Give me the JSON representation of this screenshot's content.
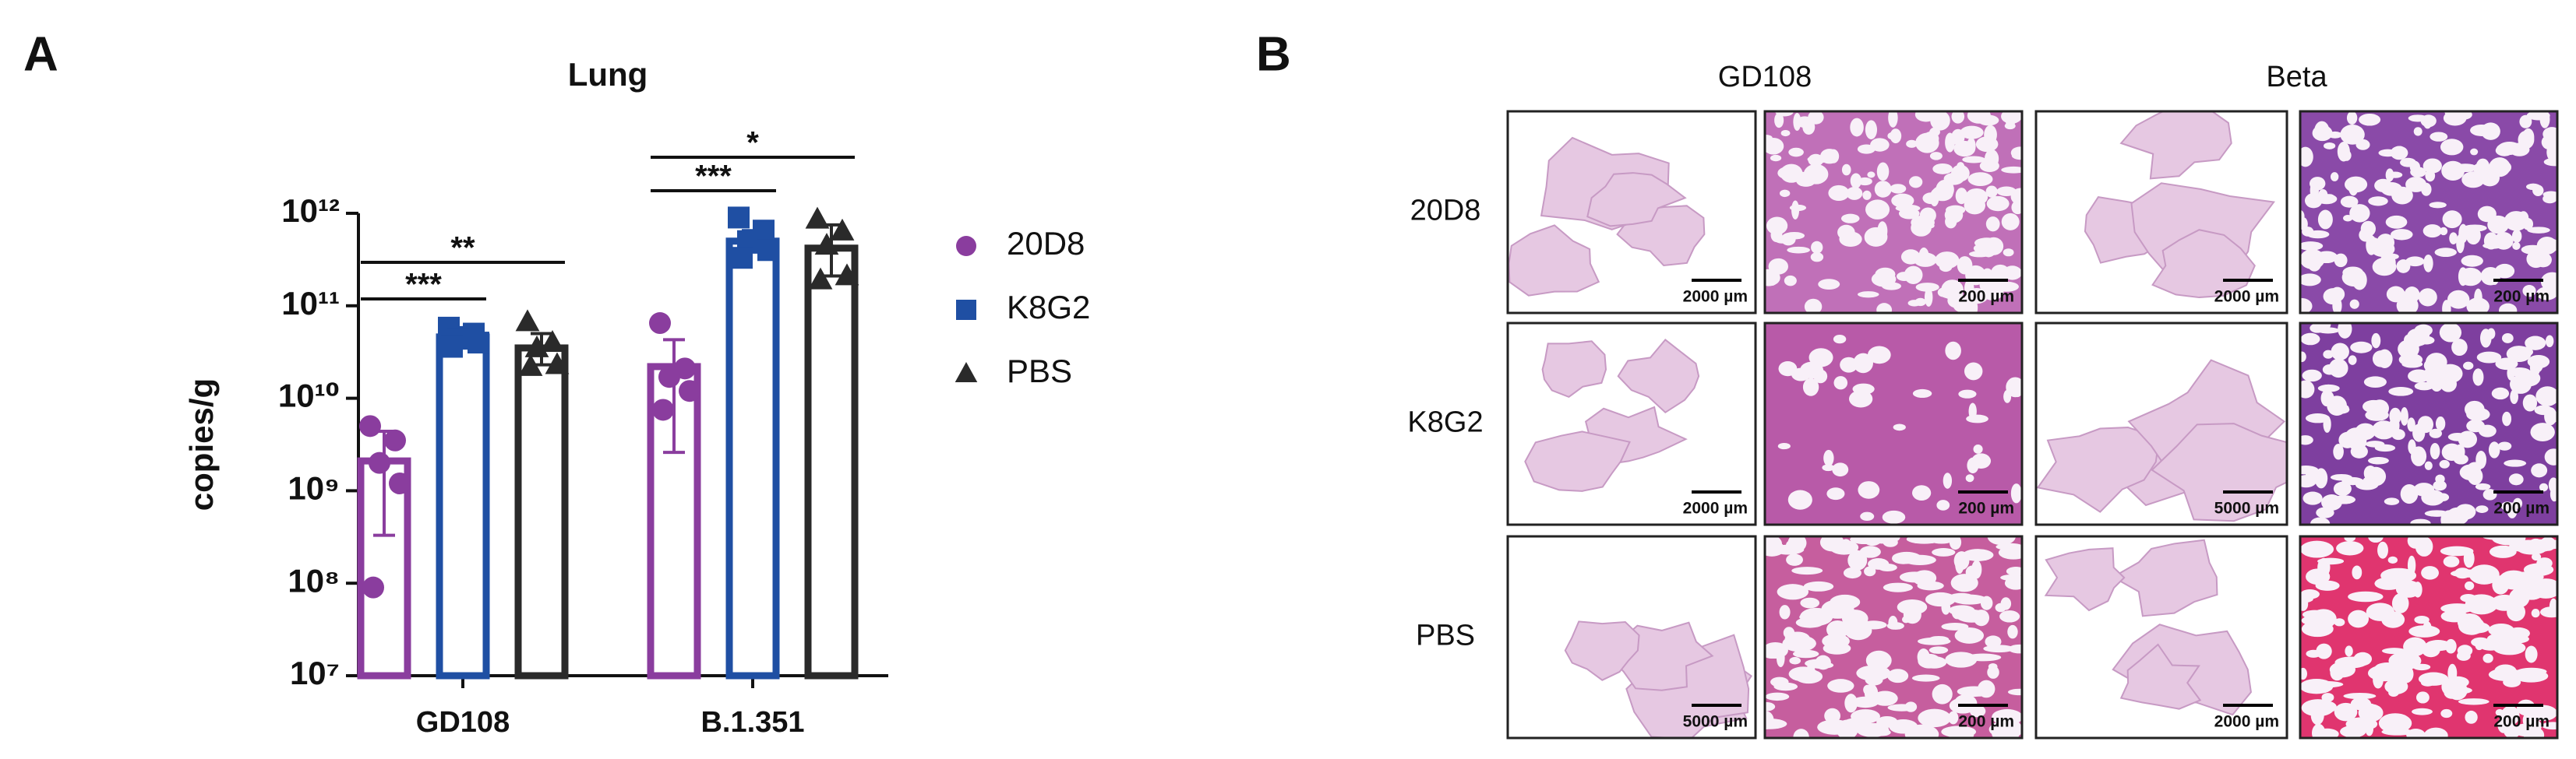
{
  "panels": [
    "A",
    "B"
  ],
  "chart_data": {
    "type": "bar",
    "title": "Lung",
    "y_label": "copies/g",
    "log_scale": true,
    "categories": [
      "GD108",
      "B.1.351"
    ],
    "ylim": [
      10000000,
      1000000000000
    ],
    "yticks": [
      {
        "value": 10000000,
        "label": "10⁷"
      },
      {
        "value": 100000000,
        "label": "10⁸"
      },
      {
        "value": 1000000000,
        "label": "10⁹"
      },
      {
        "value": 10000000000,
        "label": "10¹⁰"
      },
      {
        "value": 100000000000,
        "label": "10¹¹"
      },
      {
        "value": 1000000000000,
        "label": "10¹²"
      }
    ],
    "series": [
      {
        "name": "20D8",
        "color": "#8a3d9e",
        "marker": "circle",
        "values": [
          2100000000,
          22000000000
        ],
        "error_bars": [
          [
            330000000,
            4400000000
          ],
          [
            2600000000,
            43000000000
          ]
        ],
        "points": [
          [
            5000000000,
            3500000000,
            2000000000,
            1200000000,
            90000000
          ],
          [
            65000000000,
            21000000000,
            17000000000,
            12000000000,
            7500000000
          ]
        ]
      },
      {
        "name": "K8G2",
        "color": "#1f4fa3",
        "marker": "square",
        "values": [
          46000000000,
          500000000000
        ],
        "error_bars": [
          [
            36000000000,
            58000000000
          ],
          [
            380000000000,
            650000000000
          ]
        ],
        "points": [
          [
            58000000000,
            50000000000,
            44000000000,
            40000000000,
            36000000000
          ],
          [
            900000000000,
            650000000000,
            500000000000,
            400000000000,
            330000000000
          ]
        ]
      },
      {
        "name": "PBS",
        "color": "#2a2a2a",
        "marker": "triangle",
        "values": [
          35000000000,
          420000000000
        ],
        "error_bars": [
          [
            23000000000,
            50000000000
          ],
          [
            210000000000,
            750000000000
          ]
        ],
        "points": [
          [
            67000000000,
            40000000000,
            35000000000,
            23000000000,
            22000000000
          ],
          [
            860000000000,
            640000000000,
            450000000000,
            210000000000,
            190000000000
          ]
        ]
      }
    ],
    "annotations": [
      "***",
      "**",
      "***",
      "*"
    ]
  },
  "figure_b": {
    "columns": [
      "GD108",
      "Beta"
    ],
    "rows": [
      "20D8",
      "K8G2",
      "PBS"
    ],
    "scale_bars": [
      [
        "2000 µm",
        "200 µm",
        "2000 µm",
        "200 µm"
      ],
      [
        "2000 µm",
        "200 µm",
        "5000 µm",
        "200 µm"
      ],
      [
        "5000 µm",
        "200 µm",
        "2000 µm",
        "200 µm"
      ]
    ]
  }
}
